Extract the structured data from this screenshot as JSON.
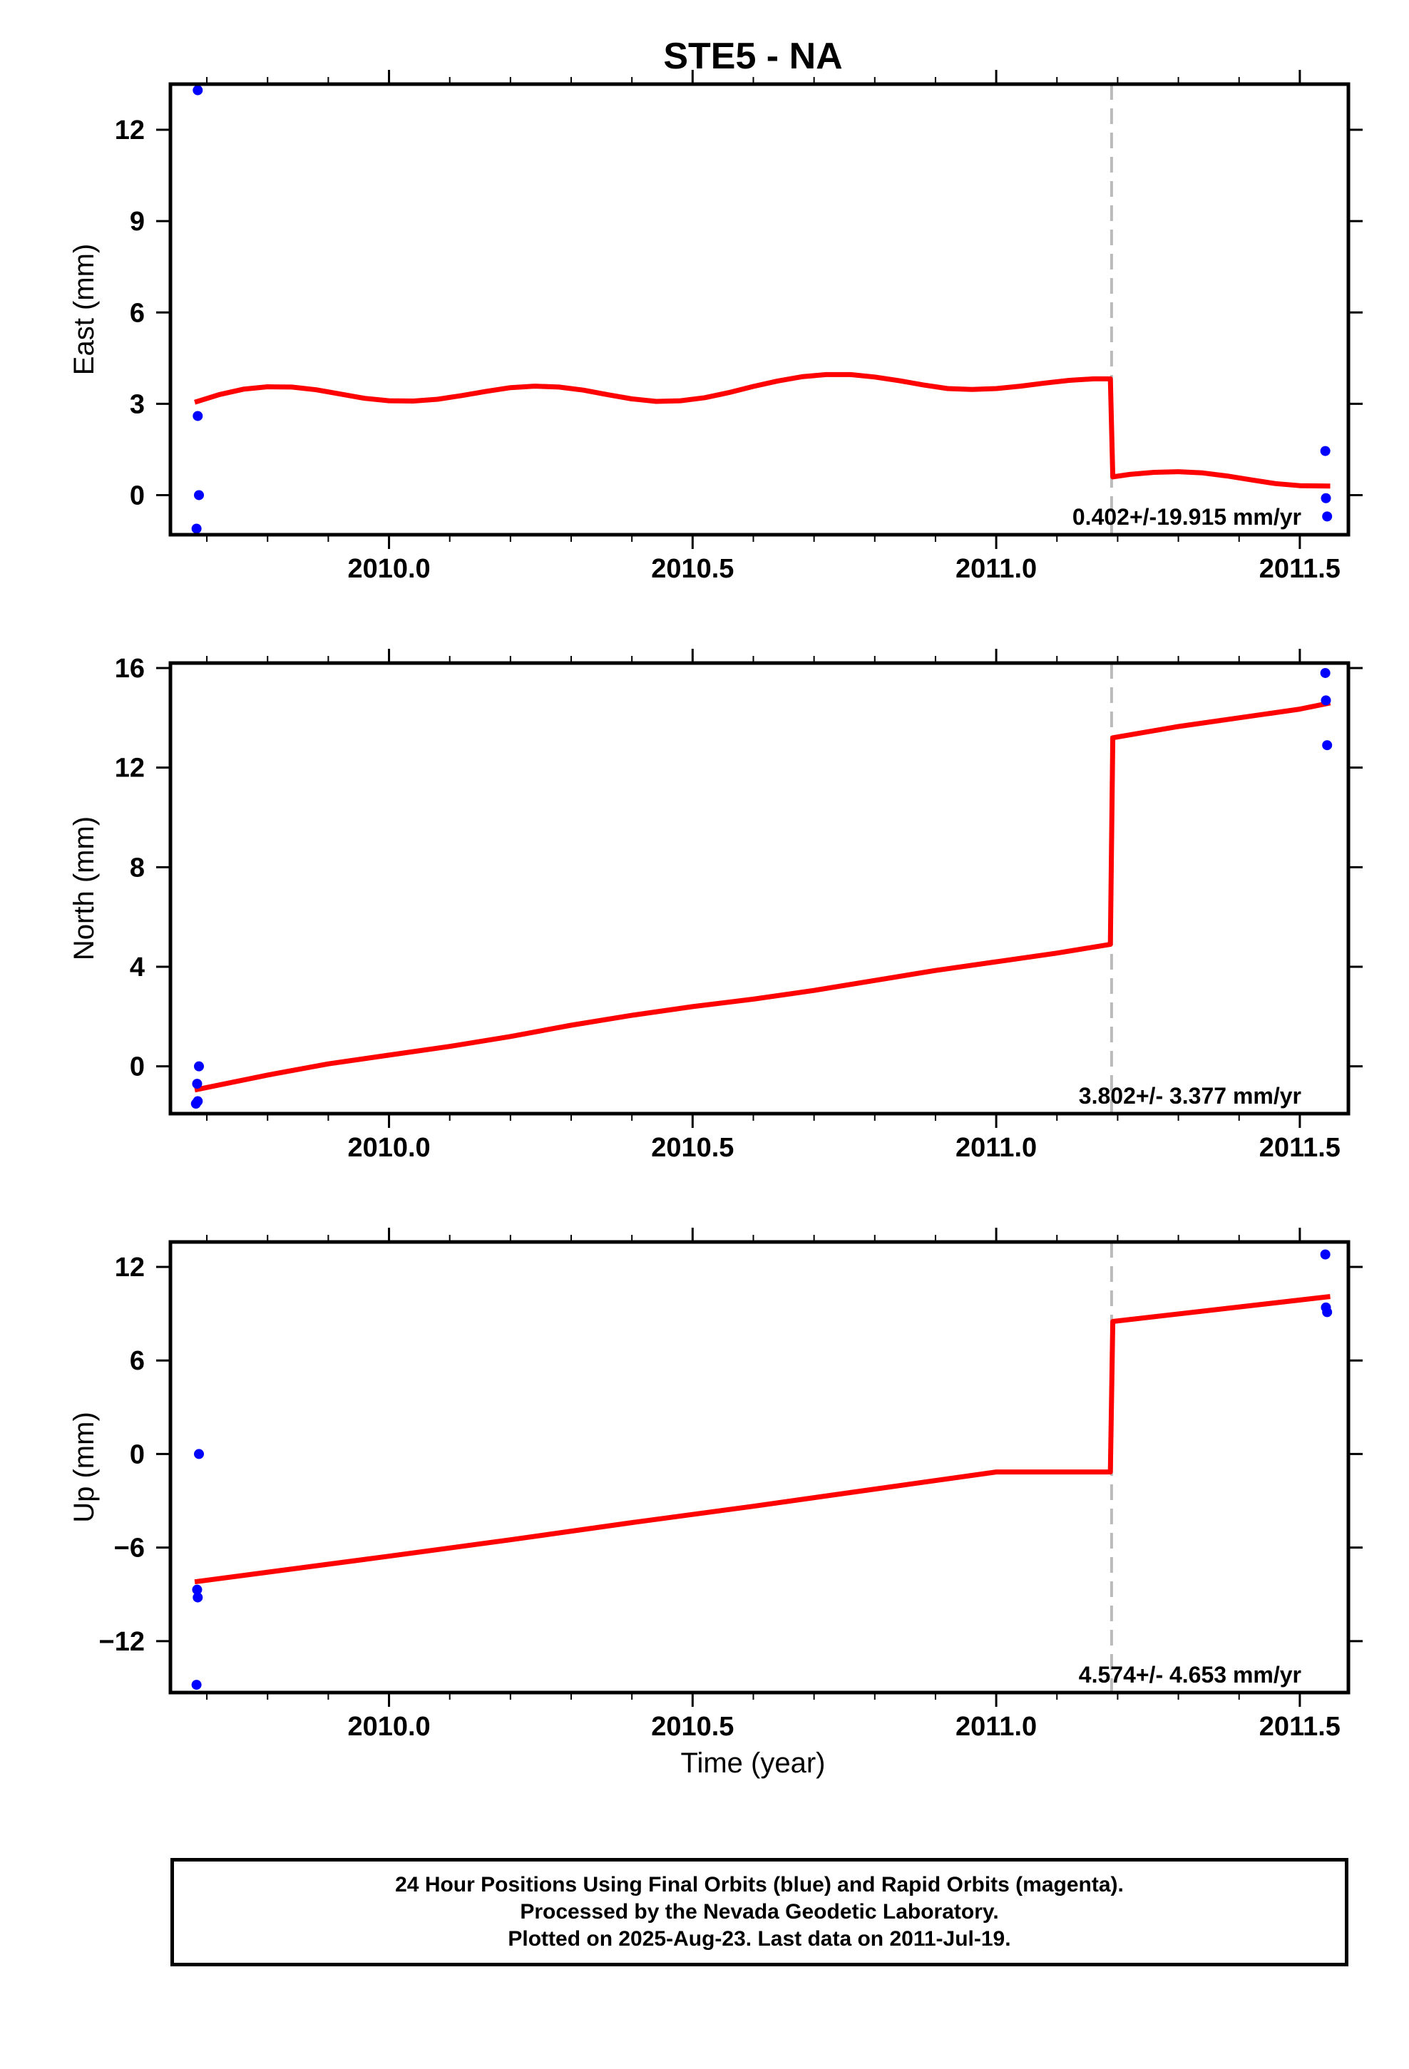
{
  "title": "STE5 - NA",
  "xlabel": "Time (year)",
  "colors": {
    "data_points": "#0000ff",
    "model_line": "#ff0000",
    "offset_line": "#bbbbbb",
    "frame": "#000000"
  },
  "footer": {
    "line1": "24 Hour Positions Using Final Orbits (blue) and Rapid Orbits (magenta).",
    "line2": "Processed by the Nevada Geodetic Laboratory.",
    "line3": "Plotted on 2025-Aug-23. Last data on 2011-Jul-19."
  },
  "chart_data": [
    {
      "type": "scatter",
      "panel": "east",
      "ylabel": "East (mm)",
      "xlim": [
        2009.64,
        2011.58
      ],
      "ylim": [
        -1.3,
        13.5
      ],
      "xticks": [
        2010.0,
        2010.5,
        2011.0,
        2011.5
      ],
      "xtick_labels": [
        "2010.0",
        "2010.5",
        "2011.0",
        "2011.5"
      ],
      "yticks": [
        0,
        3,
        6,
        9,
        12
      ],
      "ytick_labels": [
        "0",
        "3",
        "6",
        "9",
        "12"
      ],
      "offset_epoch": 2011.19,
      "rate_label": "0.402+/-19.915 mm/yr",
      "points": {
        "x": [
          2009.685,
          2009.685,
          2009.687,
          2009.683,
          2011.542,
          2011.543,
          2011.545
        ],
        "y": [
          13.3,
          2.6,
          0.0,
          -1.1,
          1.45,
          -0.1,
          -0.7
        ]
      },
      "model": {
        "x": [
          2009.68,
          2009.72,
          2009.76,
          2009.8,
          2009.84,
          2009.88,
          2009.92,
          2009.96,
          2010.0,
          2010.04,
          2010.08,
          2010.12,
          2010.16,
          2010.2,
          2010.24,
          2010.28,
          2010.32,
          2010.36,
          2010.4,
          2010.44,
          2010.48,
          2010.52,
          2010.56,
          2010.6,
          2010.64,
          2010.68,
          2010.72,
          2010.76,
          2010.8,
          2010.84,
          2010.88,
          2010.92,
          2010.96,
          2011.0,
          2011.04,
          2011.08,
          2011.12,
          2011.16,
          2011.188,
          2011.192,
          2011.22,
          2011.26,
          2011.3,
          2011.34,
          2011.38,
          2011.42,
          2011.46,
          2011.5,
          2011.55
        ],
        "y": [
          3.05,
          3.3,
          3.48,
          3.56,
          3.55,
          3.46,
          3.32,
          3.18,
          3.1,
          3.09,
          3.15,
          3.27,
          3.41,
          3.53,
          3.58,
          3.55,
          3.45,
          3.3,
          3.16,
          3.08,
          3.1,
          3.2,
          3.37,
          3.57,
          3.75,
          3.89,
          3.96,
          3.96,
          3.88,
          3.76,
          3.62,
          3.5,
          3.47,
          3.5,
          3.58,
          3.68,
          3.77,
          3.82,
          3.82,
          0.6,
          0.68,
          0.75,
          0.77,
          0.73,
          0.63,
          0.5,
          0.38,
          0.31,
          0.3
        ]
      }
    },
    {
      "type": "scatter",
      "panel": "north",
      "ylabel": "North (mm)",
      "xlim": [
        2009.64,
        2011.58
      ],
      "ylim": [
        -1.9,
        16.2
      ],
      "xticks": [
        2010.0,
        2010.5,
        2011.0,
        2011.5
      ],
      "xtick_labels": [
        "2010.0",
        "2010.5",
        "2011.0",
        "2011.5"
      ],
      "yticks": [
        0,
        4,
        8,
        12,
        16
      ],
      "ytick_labels": [
        "0",
        "4",
        "8",
        "12",
        "16"
      ],
      "offset_epoch": 2011.19,
      "rate_label": "3.802+/- 3.377 mm/yr",
      "points": {
        "x": [
          2009.687,
          2009.684,
          2009.685,
          2009.682,
          2011.542,
          2011.543,
          2011.545
        ],
        "y": [
          0.0,
          -0.7,
          -1.4,
          -1.5,
          15.8,
          14.7,
          12.9
        ]
      },
      "model": {
        "x": [
          2009.68,
          2009.8,
          2009.9,
          2010.0,
          2010.1,
          2010.2,
          2010.3,
          2010.4,
          2010.5,
          2010.6,
          2010.7,
          2010.8,
          2010.9,
          2011.0,
          2011.1,
          2011.188,
          2011.192,
          2011.3,
          2011.4,
          2011.5,
          2011.55
        ],
        "y": [
          -0.95,
          -0.35,
          0.1,
          0.45,
          0.8,
          1.2,
          1.65,
          2.05,
          2.4,
          2.7,
          3.05,
          3.45,
          3.85,
          4.2,
          4.55,
          4.9,
          13.2,
          13.65,
          14.0,
          14.35,
          14.6
        ]
      }
    },
    {
      "type": "scatter",
      "panel": "up",
      "ylabel": "Up (mm)",
      "xlim": [
        2009.64,
        2011.58
      ],
      "ylim": [
        -15.3,
        13.6
      ],
      "xticks": [
        2010.0,
        2010.5,
        2011.0,
        2011.5
      ],
      "xtick_labels": [
        "2010.0",
        "2010.5",
        "2011.0",
        "2011.5"
      ],
      "yticks": [
        -12,
        -6,
        0,
        6,
        12
      ],
      "ytick_labels": [
        "−12",
        "−6",
        "0",
        "6",
        "12"
      ],
      "offset_epoch": 2011.19,
      "rate_label": "4.574+/- 4.653 mm/yr",
      "points": {
        "x": [
          2009.687,
          2009.684,
          2009.685,
          2009.683,
          2011.542,
          2011.543,
          2011.545
        ],
        "y": [
          0.0,
          -8.7,
          -9.2,
          -14.8,
          12.8,
          9.4,
          9.1
        ]
      },
      "model": {
        "x": [
          2009.68,
          2010.0,
          2010.2,
          2010.4,
          2010.6,
          2010.8,
          2011.0,
          2011.188,
          2011.192,
          2011.55
        ],
        "y": [
          -8.2,
          -6.55,
          -5.5,
          -4.4,
          -3.35,
          -2.25,
          -1.15,
          -1.15,
          8.5,
          10.1
        ]
      }
    }
  ]
}
